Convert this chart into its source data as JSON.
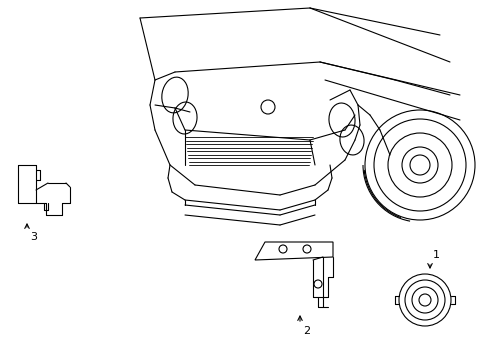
{
  "background_color": "#ffffff",
  "line_color": "#000000",
  "line_width": 0.8,
  "label_1": "1",
  "label_2": "2",
  "label_3": "3",
  "fig_width": 4.89,
  "fig_height": 3.6,
  "dpi": 100
}
